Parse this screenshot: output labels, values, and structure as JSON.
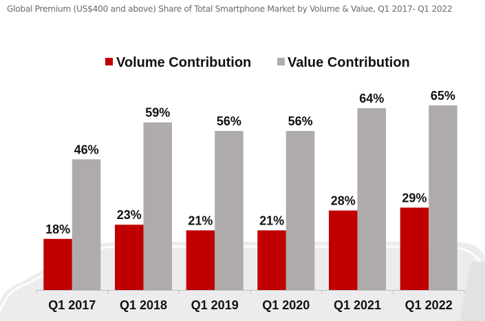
{
  "title": "Global Premium (US$400 and above) Share of Total Smartphone Market by Volume & Value, Q1 2017- Q1 2022",
  "colors": {
    "volume": "#c00000",
    "value": "#afabab",
    "axis": "#bfbfbf",
    "platform": "#eeeef0",
    "platform_edge": "#ffffff"
  },
  "chart_data": {
    "type": "bar",
    "title": "Global Premium (US$400 and above) Share of Total Smartphone Market by Volume & Value, Q1 2017- Q1 2022",
    "xlabel": "",
    "ylabel": "",
    "ylim": [
      0,
      70
    ],
    "grid": false,
    "legend_position": "top-center",
    "categories": [
      "Q1 2017",
      "Q1 2018",
      "Q1 2019",
      "Q1 2020",
      "Q1 2021",
      "Q1 2022"
    ],
    "series": [
      {
        "name": "Volume Contribution",
        "color": "#c00000",
        "values": [
          18,
          23,
          21,
          21,
          28,
          29
        ],
        "labels": [
          "18%",
          "23%",
          "21%",
          "21%",
          "28%",
          "29%"
        ]
      },
      {
        "name": "Value Contribution",
        "color": "#afabab",
        "values": [
          46,
          59,
          56,
          56,
          64,
          65
        ],
        "labels": [
          "46%",
          "59%",
          "56%",
          "56%",
          "64%",
          "65%"
        ]
      }
    ]
  }
}
